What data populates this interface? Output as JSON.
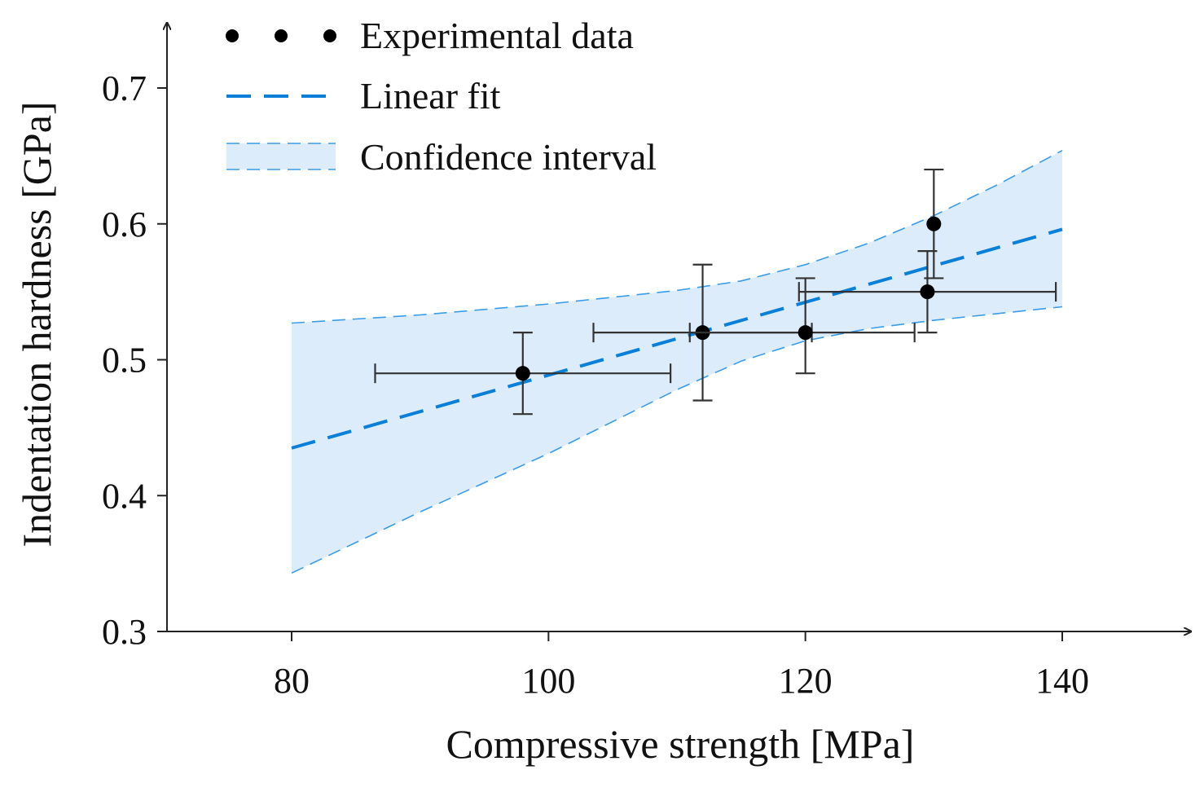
{
  "chart_data": {
    "type": "scatter",
    "title": "",
    "xlabel": "Compressive strength [MPa]",
    "ylabel": "Indentation hardness [GPa]",
    "xlim": [
      70,
      150
    ],
    "ylim": [
      0.3,
      0.73
    ],
    "x_ticks": [
      80,
      100,
      120,
      140
    ],
    "x_tick_labels": [
      "80",
      "100",
      "120",
      "140"
    ],
    "y_ticks": [
      0.3,
      0.4,
      0.5,
      0.6,
      0.7
    ],
    "y_tick_labels": [
      "0.3",
      "0.4",
      "0.5",
      "0.6",
      "0.7"
    ],
    "grid": false,
    "legend_position": "top-left",
    "legend": [
      {
        "key": "points",
        "label": "Experimental data"
      },
      {
        "key": "fit",
        "label": "Linear fit"
      },
      {
        "key": "band",
        "label": "Confidence interval"
      }
    ],
    "series": [
      {
        "name": "Experimental data",
        "type": "scatter",
        "points": [
          {
            "x": 98,
            "y": 0.49,
            "xerr": [
              86.5,
              109.5
            ],
            "yerr": [
              0.46,
              0.52
            ]
          },
          {
            "x": 112,
            "y": 0.52,
            "xerr": [
              103.5,
              120.5
            ],
            "yerr": [
              0.47,
              0.57
            ]
          },
          {
            "x": 120,
            "y": 0.52,
            "xerr": [
              111.0,
              128.5
            ],
            "yerr": [
              0.49,
              0.56
            ]
          },
          {
            "x": 129.5,
            "y": 0.55,
            "xerr": [
              119.5,
              139.5
            ],
            "yerr": [
              0.52,
              0.58
            ]
          },
          {
            "x": 130,
            "y": 0.6,
            "xerr": [
              130,
              130
            ],
            "yerr": [
              0.56,
              0.64
            ]
          }
        ]
      },
      {
        "name": "Linear fit",
        "type": "line",
        "x": [
          80,
          140
        ],
        "y": [
          0.435,
          0.596
        ]
      },
      {
        "name": "Confidence interval",
        "type": "band",
        "x": [
          80,
          90,
          100,
          110,
          115,
          120,
          125,
          130,
          135,
          140
        ],
        "upper": [
          0.527,
          0.533,
          0.541,
          0.551,
          0.558,
          0.57,
          0.586,
          0.606,
          0.629,
          0.654
        ],
        "lower": [
          0.343,
          0.388,
          0.431,
          0.478,
          0.499,
          0.514,
          0.523,
          0.529,
          0.534,
          0.539
        ]
      }
    ]
  },
  "colors": {
    "fit_line": "#0a7fd8",
    "band_fill": "#dcecfa",
    "band_edge": "#3a9ce8",
    "points": "#000000",
    "errorbars": "#333333",
    "axes": "#222222"
  }
}
